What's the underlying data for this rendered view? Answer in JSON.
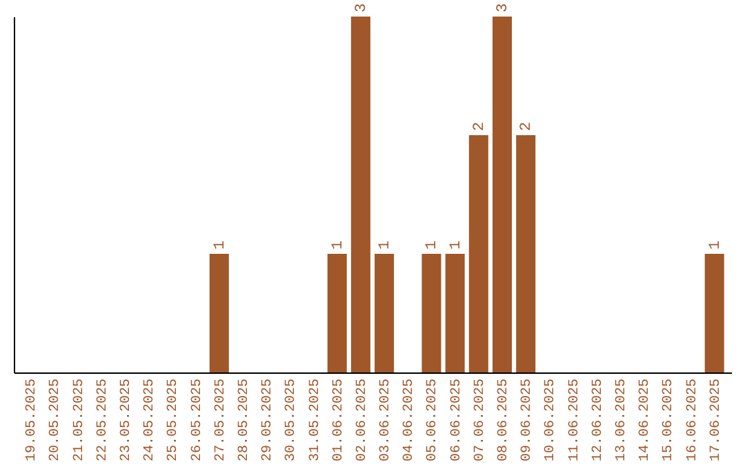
{
  "chart_data": {
    "type": "bar",
    "categories": [
      "19.05.2025",
      "20.05.2025",
      "21.05.2025",
      "22.05.2025",
      "23.05.2025",
      "24.05.2025",
      "25.05.2025",
      "26.05.2025",
      "27.05.2025",
      "28.05.2025",
      "29.05.2025",
      "30.05.2025",
      "31.05.2025",
      "01.06.2025",
      "02.06.2025",
      "03.06.2025",
      "04.06.2025",
      "05.06.2025",
      "06.06.2025",
      "07.06.2025",
      "08.06.2025",
      "09.06.2025",
      "10.06.2025",
      "11.06.2025",
      "12.06.2025",
      "13.06.2025",
      "14.06.2025",
      "15.06.2025",
      "16.06.2025",
      "17.06.2025"
    ],
    "values": [
      0,
      0,
      0,
      0,
      0,
      0,
      0,
      0,
      1,
      0,
      0,
      0,
      0,
      1,
      3,
      1,
      0,
      1,
      1,
      2,
      3,
      2,
      0,
      0,
      0,
      0,
      0,
      0,
      0,
      1
    ],
    "value_labels": [
      null,
      null,
      null,
      null,
      null,
      null,
      null,
      null,
      "1",
      null,
      null,
      null,
      null,
      "1",
      "3",
      "1",
      null,
      "1",
      "1",
      "2",
      "3",
      "2",
      null,
      null,
      null,
      null,
      null,
      null,
      null,
      "1"
    ],
    "color": "#a0572a"
  }
}
